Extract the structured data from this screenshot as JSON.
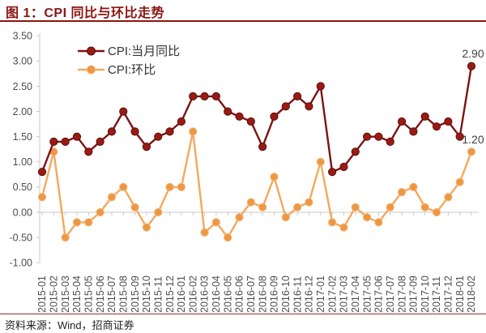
{
  "figure": {
    "title": "图 1：CPI 同比与环比走势",
    "source": "资料来源：Wind，招商证券"
  },
  "colors": {
    "title_text": "#8a1511",
    "title_rule": "#8a1511",
    "footer_rule": "#9c2f2c",
    "axis_line": "#c8c8c8",
    "tick_text": "#4d4d4d",
    "annotation_text": "#404040",
    "legend_text": "#333333"
  },
  "chart_data": {
    "type": "line",
    "title": "图 1：CPI 同比与环比走势",
    "x": [
      "2015-01",
      "2015-02",
      "2015-03",
      "2015-04",
      "2015-05",
      "2015-06",
      "2015-07",
      "2015-08",
      "2015-09",
      "2015-10",
      "2015-11",
      "2015-12",
      "2016-01",
      "2016-02",
      "2016-03",
      "2016-04",
      "2016-05",
      "2016-06",
      "2016-07",
      "2016-08",
      "2016-09",
      "2016-10",
      "2016-11",
      "2016-12",
      "2017-01",
      "2017-02",
      "2017-03",
      "2017-04",
      "2017-05",
      "2017-06",
      "2017-07",
      "2017-08",
      "2017-09",
      "2017-10",
      "2017-11",
      "2017-12",
      "2018-01",
      "2018-02"
    ],
    "series": [
      {
        "name": "CPI:当月同比",
        "values": [
          0.8,
          1.4,
          1.4,
          1.5,
          1.2,
          1.4,
          1.6,
          2.0,
          1.6,
          1.3,
          1.5,
          1.6,
          1.8,
          2.3,
          2.3,
          2.3,
          2.0,
          1.9,
          1.8,
          1.3,
          1.9,
          2.1,
          2.3,
          2.1,
          2.5,
          0.8,
          0.9,
          1.2,
          1.5,
          1.5,
          1.4,
          1.8,
          1.6,
          1.9,
          1.7,
          1.8,
          1.5,
          2.9
        ],
        "line_color": "#7b1413",
        "marker_color": "#9a1b12",
        "marker_edge": "#5c0d0d",
        "end_label": "2.90"
      },
      {
        "name": "CPI:环比",
        "values": [
          0.3,
          1.2,
          -0.5,
          -0.2,
          -0.2,
          0.0,
          0.3,
          0.5,
          0.1,
          -0.3,
          0.0,
          0.5,
          0.5,
          1.6,
          -0.4,
          -0.2,
          -0.5,
          -0.1,
          0.2,
          0.1,
          0.7,
          -0.1,
          0.1,
          0.2,
          1.0,
          -0.2,
          -0.3,
          0.1,
          -0.1,
          -0.2,
          0.1,
          0.4,
          0.5,
          0.1,
          0.0,
          0.3,
          0.6,
          1.2
        ],
        "line_color": "#f4a85c",
        "marker_color": "#ee9742",
        "marker_edge": "#f2b376",
        "end_label": "1.20"
      }
    ],
    "ylim": [
      -1.0,
      3.5
    ],
    "yticks": [
      "3.50",
      "3.00",
      "2.50",
      "2.00",
      "1.50",
      "1.00",
      "0.50",
      "0.00",
      "-0.50",
      "-1.00"
    ],
    "ytick_values": [
      3.5,
      3.0,
      2.5,
      2.0,
      1.5,
      1.0,
      0.5,
      0.0,
      -0.5,
      -1.0
    ],
    "grid": false,
    "legend_position": "upper-left-inside"
  }
}
